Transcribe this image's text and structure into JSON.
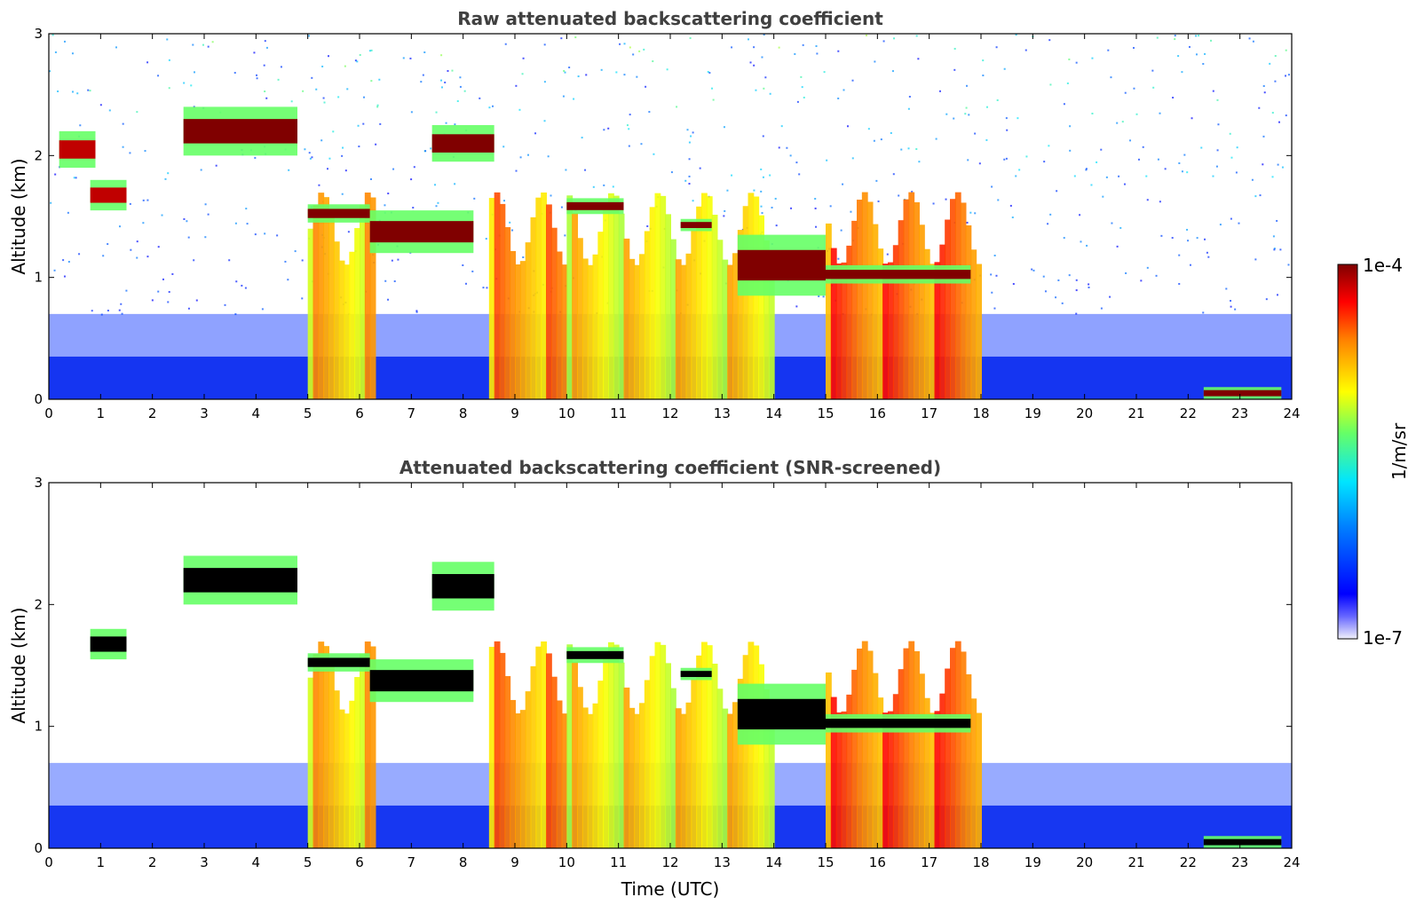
{
  "chart_data": [
    {
      "type": "heatmap",
      "title": "Raw attenuated backscattering coefficient",
      "xlabel": "",
      "ylabel": "Altitude (km)",
      "xlim": [
        0,
        24
      ],
      "ylim": [
        0,
        3
      ],
      "xticks": [
        0,
        1,
        2,
        3,
        4,
        5,
        6,
        7,
        8,
        9,
        10,
        11,
        12,
        13,
        14,
        15,
        16,
        17,
        18,
        19,
        20,
        21,
        22,
        23,
        24
      ],
      "yticks": [
        0,
        1,
        2,
        3
      ],
      "layers": [
        {
          "x": [
            0.2,
            0.9
          ],
          "y": [
            1.9,
            2.2
          ],
          "level": 0.95
        },
        {
          "x": [
            0.8,
            1.5
          ],
          "y": [
            1.55,
            1.8
          ],
          "level": 0.95
        },
        {
          "x": [
            2.6,
            4.8
          ],
          "y": [
            2.0,
            2.4
          ],
          "level": 1.0
        },
        {
          "x": [
            5.0,
            6.2
          ],
          "y": [
            1.45,
            1.6
          ],
          "level": 1.0
        },
        {
          "x": [
            6.2,
            8.2
          ],
          "y": [
            1.2,
            1.55
          ],
          "level": 1.0
        },
        {
          "x": [
            7.4,
            8.6
          ],
          "y": [
            1.95,
            2.25
          ],
          "level": 1.0
        },
        {
          "x": [
            10.0,
            11.1
          ],
          "y": [
            1.52,
            1.65
          ],
          "level": 1.0
        },
        {
          "x": [
            12.2,
            12.8
          ],
          "y": [
            1.38,
            1.48
          ],
          "level": 1.0
        },
        {
          "x": [
            13.3,
            15.0
          ],
          "y": [
            0.85,
            1.35
          ],
          "level": 1.0
        },
        {
          "x": [
            15.0,
            17.8
          ],
          "y": [
            0.95,
            1.1
          ],
          "level": 1.0
        },
        {
          "x": [
            22.3,
            23.8
          ],
          "y": [
            0.0,
            0.1
          ],
          "level": 1.0
        }
      ],
      "precipitation_columns": [
        {
          "x": [
            5.0,
            6.3
          ],
          "level": 0.75
        },
        {
          "x": [
            8.5,
            10.0
          ],
          "level": 0.8
        },
        {
          "x": [
            10.0,
            14.0
          ],
          "level": 0.72
        },
        {
          "x": [
            15.0,
            18.0
          ],
          "level": 0.85
        }
      ]
    },
    {
      "type": "heatmap",
      "title": "Attenuated backscattering coefficient (SNR-screened)",
      "xlabel": "Time (UTC)",
      "ylabel": "Altitude (km)",
      "xlim": [
        0,
        24
      ],
      "ylim": [
        0,
        3
      ],
      "xticks": [
        0,
        1,
        2,
        3,
        4,
        5,
        6,
        7,
        8,
        9,
        10,
        11,
        12,
        13,
        14,
        15,
        16,
        17,
        18,
        19,
        20,
        21,
        22,
        23,
        24
      ],
      "yticks": [
        0,
        1,
        2,
        3
      ],
      "layers": [
        {
          "x": [
            0.8,
            1.5
          ],
          "y": [
            1.55,
            1.8
          ],
          "level": 1.0
        },
        {
          "x": [
            2.6,
            4.8
          ],
          "y": [
            2.0,
            2.4
          ],
          "level": 1.0
        },
        {
          "x": [
            5.0,
            6.2
          ],
          "y": [
            1.45,
            1.6
          ],
          "level": 1.0
        },
        {
          "x": [
            6.2,
            8.2
          ],
          "y": [
            1.2,
            1.55
          ],
          "level": 1.0
        },
        {
          "x": [
            7.4,
            8.6
          ],
          "y": [
            1.95,
            2.35
          ],
          "level": 1.0
        },
        {
          "x": [
            10.0,
            11.1
          ],
          "y": [
            1.52,
            1.65
          ],
          "level": 1.0
        },
        {
          "x": [
            12.2,
            12.8
          ],
          "y": [
            1.38,
            1.48
          ],
          "level": 1.0
        },
        {
          "x": [
            13.3,
            15.0
          ],
          "y": [
            0.85,
            1.35
          ],
          "level": 1.0
        },
        {
          "x": [
            15.0,
            17.8
          ],
          "y": [
            0.95,
            1.1
          ],
          "level": 1.0
        },
        {
          "x": [
            22.3,
            23.8
          ],
          "y": [
            0.0,
            0.1
          ],
          "level": 1.0
        }
      ],
      "precipitation_columns": [
        {
          "x": [
            5.0,
            6.3
          ],
          "level": 0.75
        },
        {
          "x": [
            8.5,
            10.0
          ],
          "level": 0.8
        },
        {
          "x": [
            10.0,
            14.0
          ],
          "level": 0.72
        },
        {
          "x": [
            15.0,
            18.0
          ],
          "level": 0.85
        }
      ]
    }
  ],
  "colorbar": {
    "label": "1/m/sr",
    "max_label": "1e-4",
    "min_label": "1e-7",
    "range": [
      1e-07,
      0.0001
    ],
    "scale": "log",
    "colormap": [
      "#e6e6f5",
      "#0000ff",
      "#00ccff",
      "#66ff66",
      "#ffff00",
      "#ff6600",
      "#ff0000",
      "#8b0000"
    ]
  }
}
